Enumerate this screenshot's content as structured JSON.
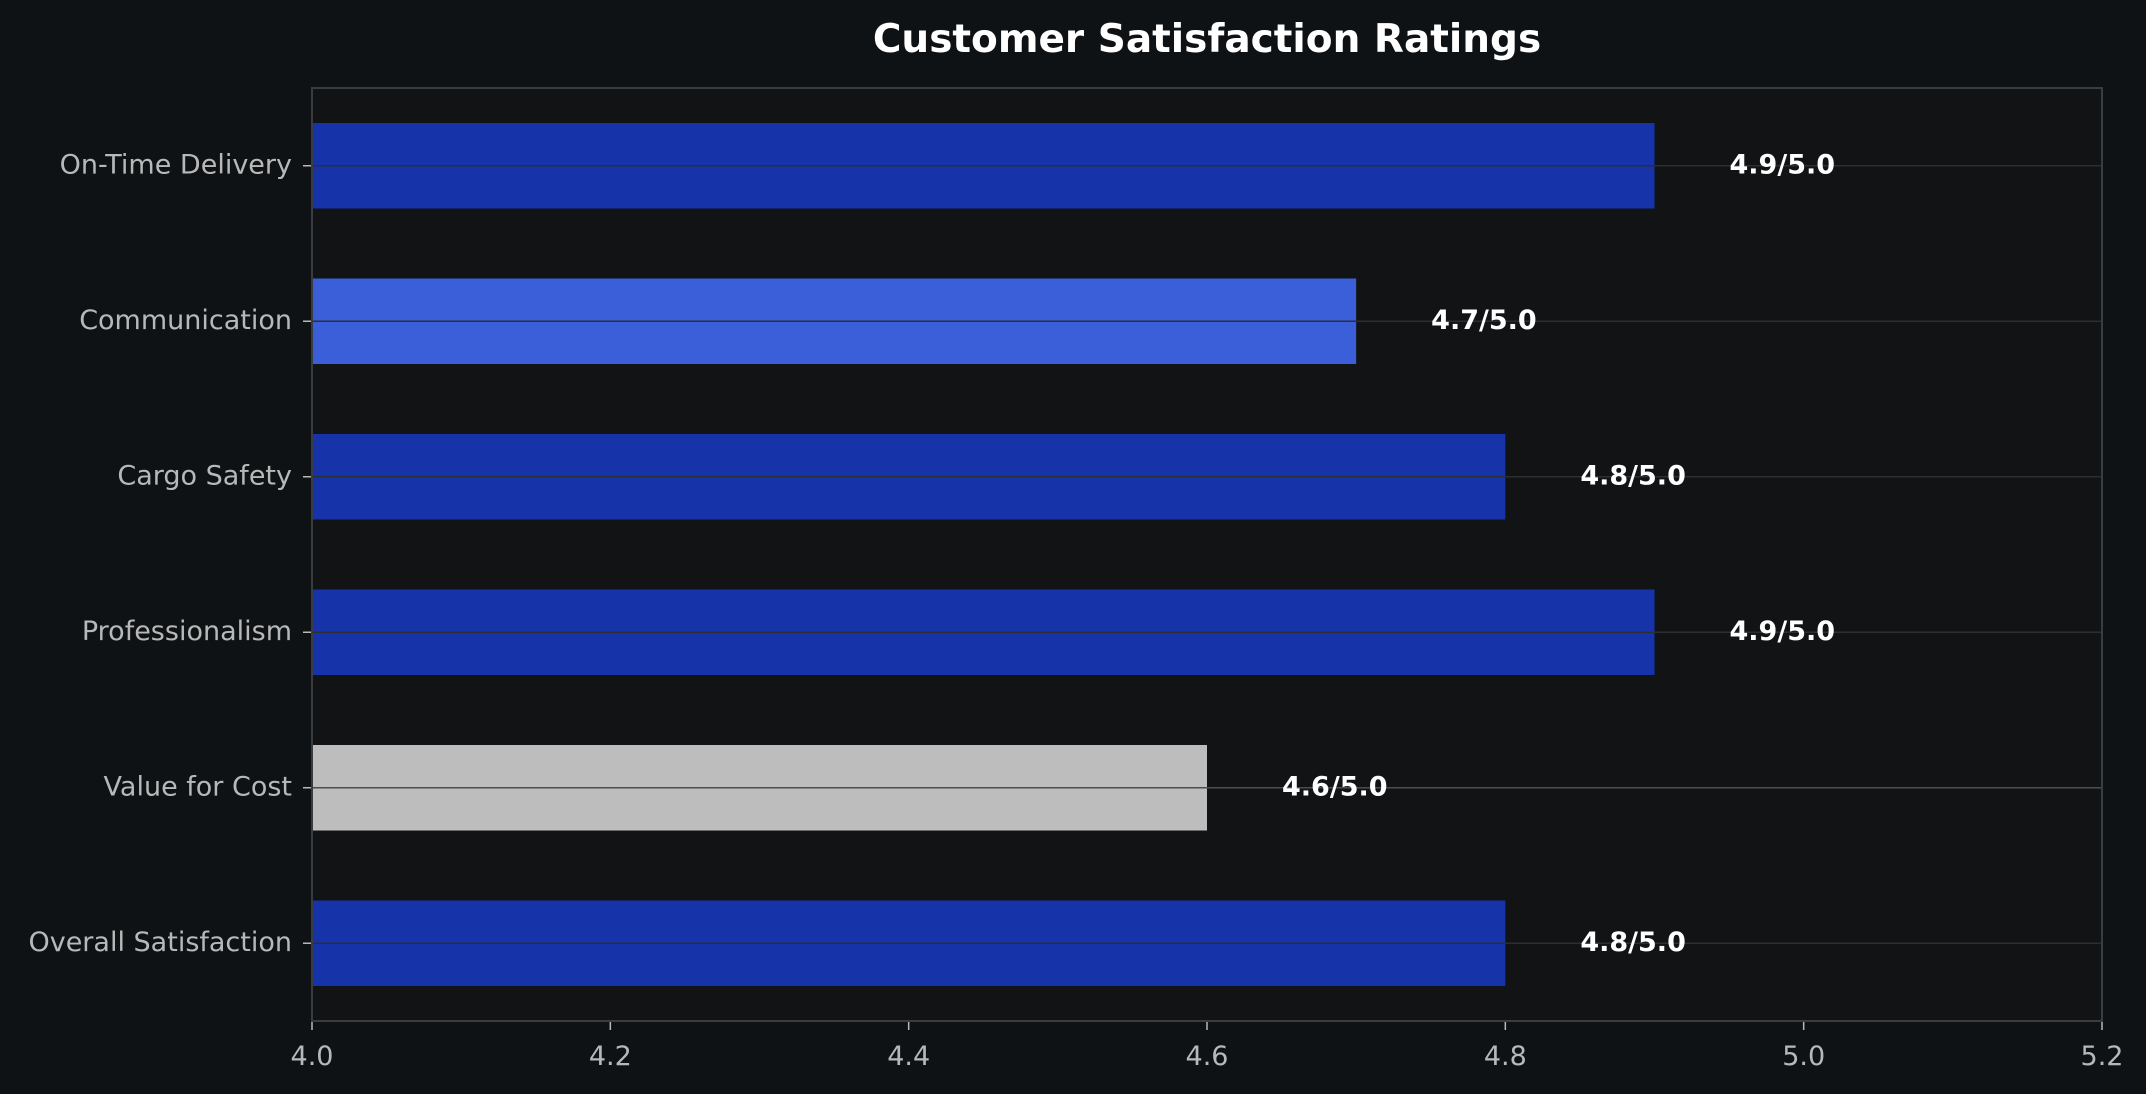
{
  "chart_data": {
    "type": "bar",
    "orientation": "horizontal",
    "title": "Customer Satisfaction Ratings",
    "xlabel": "",
    "ylabel": "",
    "categories": [
      "On-Time Delivery",
      "Communication",
      "Cargo Safety",
      "Professionalism",
      "Value for Cost",
      "Overall Satisfaction"
    ],
    "values": [
      4.9,
      4.7,
      4.8,
      4.9,
      4.6,
      4.8
    ],
    "value_labels": [
      "4.9/5.0",
      "4.7/5.0",
      "4.8/5.0",
      "4.9/5.0",
      "4.6/5.0",
      "4.8/5.0"
    ],
    "bar_colors": [
      "#1733aa",
      "#3b5fd8",
      "#1733aa",
      "#1733aa",
      "#bdbdbd",
      "#1733aa"
    ],
    "xlim": [
      4.0,
      5.2
    ],
    "xticks": [
      4.0,
      4.2,
      4.4,
      4.6,
      4.8,
      5.0,
      5.2
    ],
    "xtick_labels": [
      "4.0",
      "4.2",
      "4.4",
      "4.6",
      "4.8",
      "5.0",
      "5.2"
    ],
    "grid": "horizontal",
    "legend": "none"
  },
  "colors": {
    "background": "#0f1214",
    "plot_background": "#111314",
    "axis": "#3a3d40",
    "grid": "#2c2f32",
    "tick_text": "#b8b8b8",
    "title_text": "#ffffff",
    "value_text": "#ffffff"
  }
}
